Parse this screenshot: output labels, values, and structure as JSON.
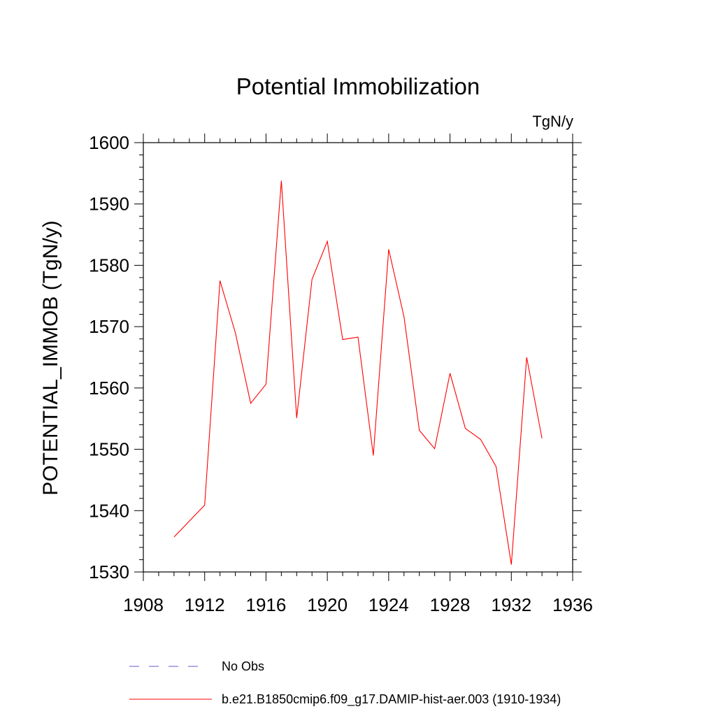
{
  "chart_data": {
    "type": "line",
    "title": "Potential Immobilization",
    "units_label": "TgN/y",
    "ylabel": "POTENTIAL_IMMOB  (TgN/y)",
    "xlabel": "",
    "xlim": [
      1908,
      1936
    ],
    "ylim": [
      1530,
      1600
    ],
    "x_ticks": [
      1908,
      1912,
      1916,
      1920,
      1924,
      1928,
      1932,
      1936
    ],
    "y_ticks": [
      1530,
      1540,
      1550,
      1560,
      1570,
      1580,
      1590,
      1600
    ],
    "grid": false,
    "legend_position": "bottom",
    "series": [
      {
        "name": "No Obs",
        "color": "#6a5acd",
        "dash": "dashed",
        "x": [],
        "values": []
      },
      {
        "name": "b.e21.B1850cmip6.f09_g17.DAMIP-hist-aer.003 (1910-1934)",
        "color": "#ff0000",
        "dash": "solid",
        "x": [
          1910,
          1911,
          1912,
          1913,
          1914,
          1915,
          1916,
          1917,
          1918,
          1919,
          1920,
          1921,
          1922,
          1923,
          1924,
          1925,
          1926,
          1927,
          1928,
          1929,
          1930,
          1931,
          1932,
          1933,
          1934
        ],
        "values": [
          1535.7,
          1538.3,
          1540.9,
          1577.5,
          1569.0,
          1557.5,
          1560.6,
          1593.8,
          1555.1,
          1577.7,
          1583.9,
          1567.9,
          1568.3,
          1549.0,
          1582.6,
          1571.6,
          1553.1,
          1550.1,
          1562.4,
          1553.4,
          1551.6,
          1547.2,
          1531.2,
          1565.0,
          1551.8
        ]
      }
    ]
  }
}
